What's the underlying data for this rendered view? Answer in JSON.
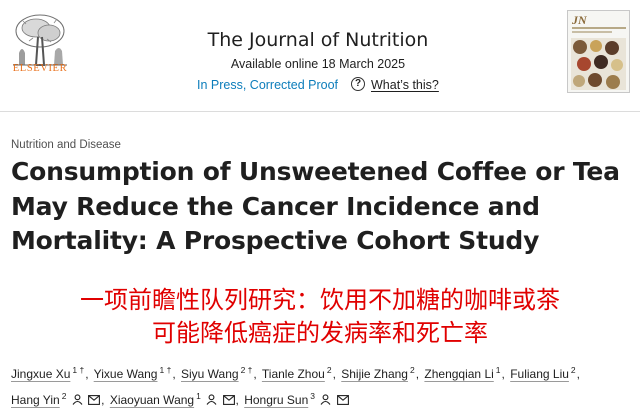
{
  "header": {
    "publisher": "ELSEVIER",
    "journal_title": "The Journal of Nutrition",
    "available_online": "Available online 18 March 2025",
    "status_link": "In Press, Corrected Proof",
    "help_glyph": "?",
    "whats_this": "What’s this?",
    "cover_abbrev": "JN",
    "icons": [
      "elsevier-tree-logo",
      "question-circle-icon",
      "journal-cover-thumbnail"
    ]
  },
  "article": {
    "category": "Nutrition and Disease",
    "title_lines": [
      "Consumption of Unsweetened Coffee or Tea",
      "May Reduce the Cancer Incidence and",
      "Mortality: A Prospective Cohort Study"
    ],
    "cn_title_lines": [
      "一项前瞻性队列研究：饮用不加糖的咖啡或茶",
      "可能降低癌症的发病率和死亡率"
    ]
  },
  "authors": [
    {
      "name": "Jingxue Xu",
      "sup": "1 †"
    },
    {
      "name": "Yixue Wang",
      "sup": "1 †"
    },
    {
      "name": "Siyu Wang",
      "sup": "2 †"
    },
    {
      "name": "Tianle Zhou",
      "sup": "2"
    },
    {
      "name": "Shijie Zhang",
      "sup": "2"
    },
    {
      "name": "Zhengqian Li",
      "sup": "1"
    },
    {
      "name": "Fuliang Liu",
      "sup": "2"
    },
    {
      "name": "Hang Yin",
      "sup": "2"
    },
    {
      "name": "Xiaoyuan Wang",
      "sup": "1"
    },
    {
      "name": "Hongru Sun",
      "sup": "3"
    }
  ],
  "author_separator": ",",
  "colors": {
    "link": "#0c7dbb",
    "elsevier_orange": "#e9711c",
    "cn_title_red": "#e00000"
  }
}
